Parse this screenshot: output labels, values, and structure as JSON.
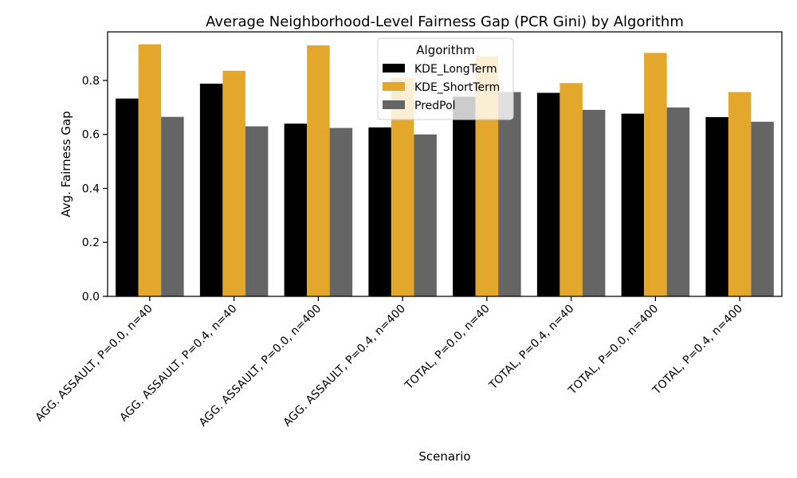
{
  "chart_data": {
    "type": "bar",
    "title": "Average Neighborhood-Level Fairness Gap (PCR Gini) by Algorithm",
    "xlabel": "Scenario",
    "ylabel": "Avg. Fairness Gap",
    "ylim": [
      0,
      0.98
    ],
    "yticks": [
      0.0,
      0.2,
      0.4,
      0.6,
      0.8
    ],
    "ytick_labels": [
      "0.0",
      "0.2",
      "0.4",
      "0.6",
      "0.8"
    ],
    "grid": false,
    "legend": {
      "title": "Algorithm",
      "placement": "top-center"
    },
    "categories": [
      "AGG. ASSAULT, P=0.0, n=40",
      "AGG. ASSAULT, P=0.4, n=40",
      "AGG. ASSAULT, P=0.0, n=400",
      "AGG. ASSAULT, P=0.4, n=400",
      "TOTAL, P=0.0, n=40",
      "TOTAL, P=0.4, n=40",
      "TOTAL, P=0.0, n=400",
      "TOTAL, P=0.4, n=400"
    ],
    "series": [
      {
        "name": "KDE_LongTerm",
        "color": "#000000",
        "values": [
          0.733,
          0.788,
          0.64,
          0.626,
          0.74,
          0.754,
          0.677,
          0.664
        ]
      },
      {
        "name": "KDE_ShortTerm",
        "color": "#e3a82b",
        "values": [
          0.934,
          0.836,
          0.93,
          0.81,
          0.89,
          0.79,
          0.902,
          0.757
        ]
      },
      {
        "name": "PredPol",
        "color": "#656565",
        "values": [
          0.665,
          0.63,
          0.624,
          0.6,
          0.757,
          0.691,
          0.7,
          0.647
        ]
      }
    ]
  }
}
